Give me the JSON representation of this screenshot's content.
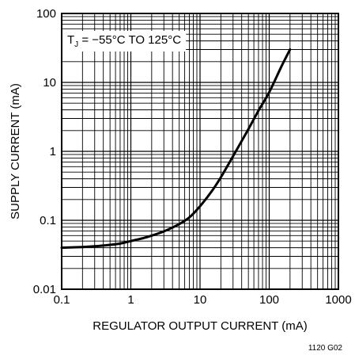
{
  "chart_data": {
    "type": "line",
    "xscale": "log",
    "yscale": "log",
    "xlim": [
      0.1,
      1000
    ],
    "ylim": [
      0.01,
      100
    ],
    "xlabel": "REGULATOR OUTPUT CURRENT (mA)",
    "ylabel": "SUPPLY CURRENT (mA)",
    "xtick_labels": [
      "0.1",
      "1",
      "10",
      "100",
      "1000"
    ],
    "ytick_labels": [
      "0.01",
      "0.1",
      "1",
      "10",
      "100"
    ],
    "annotation": {
      "main": "T",
      "sub": "J",
      "rest": " = −55°C TO 125°C"
    },
    "figure_code": "1120 G02",
    "grid": true,
    "series": [
      {
        "x": [
          0.1,
          0.2,
          0.3,
          0.5,
          0.7,
          1,
          1.5,
          2,
          3,
          5,
          7,
          10,
          15,
          20,
          30,
          50,
          70,
          100,
          150,
          200
        ],
        "y": [
          0.04,
          0.041,
          0.042,
          0.044,
          0.046,
          0.05,
          0.055,
          0.06,
          0.069,
          0.088,
          0.11,
          0.16,
          0.27,
          0.42,
          0.85,
          2.1,
          3.9,
          7.2,
          17,
          30
        ]
      }
    ]
  }
}
